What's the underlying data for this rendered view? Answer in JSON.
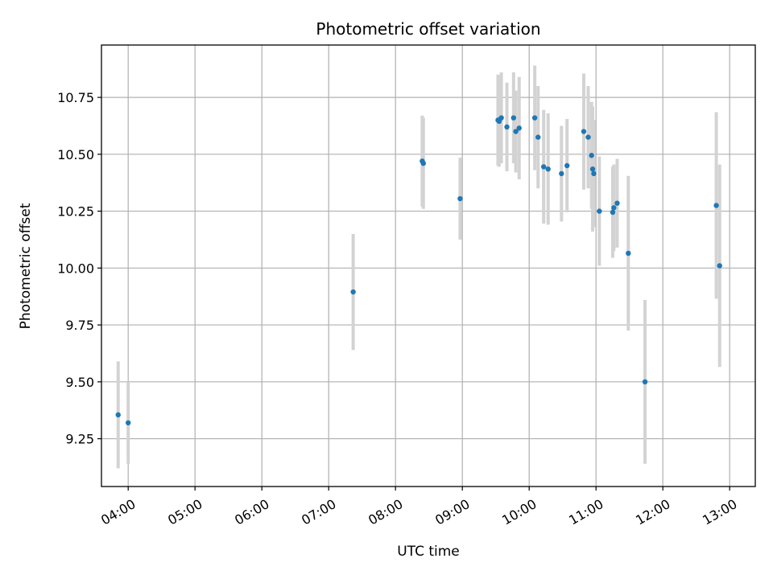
{
  "chart_data": {
    "type": "scatter",
    "title": "Photometric offset variation",
    "xlabel": "UTC time",
    "ylabel": "Photometric offset",
    "x_axis": {
      "kind": "time",
      "ticks": [
        "04:00",
        "05:00",
        "06:00",
        "07:00",
        "08:00",
        "09:00",
        "10:00",
        "11:00",
        "12:00",
        "13:00"
      ]
    },
    "y_axis": {
      "ticks": [
        9.25,
        9.5,
        9.75,
        10.0,
        10.25,
        10.5,
        10.75
      ],
      "tick_labels": [
        "9.25",
        "9.50",
        "9.75",
        "10.00",
        "10.25",
        "10.50",
        "10.75"
      ]
    },
    "xlim": [
      "03:36",
      "13:23"
    ],
    "ylim": [
      9.04,
      10.98
    ],
    "grid": true,
    "point_color": "#1f77b4",
    "errorbar_color": "#d3d3d3",
    "points": [
      {
        "x": "03:51",
        "y": 9.355,
        "err": 0.235
      },
      {
        "x": "04:00",
        "y": 9.32,
        "err": 0.18
      },
      {
        "x": "07:22",
        "y": 9.895,
        "err": 0.255
      },
      {
        "x": "08:24",
        "y": 10.47,
        "err": 0.2
      },
      {
        "x": "08:25",
        "y": 10.46,
        "err": 0.2
      },
      {
        "x": "08:58",
        "y": 10.305,
        "err": 0.18
      },
      {
        "x": "09:32",
        "y": 10.65,
        "err": 0.2
      },
      {
        "x": "09:33",
        "y": 10.645,
        "err": 0.2
      },
      {
        "x": "09:35",
        "y": 10.66,
        "err": 0.2
      },
      {
        "x": "09:40",
        "y": 10.62,
        "err": 0.195
      },
      {
        "x": "09:46",
        "y": 10.66,
        "err": 0.2
      },
      {
        "x": "09:48",
        "y": 10.6,
        "err": 0.18
      },
      {
        "x": "09:51",
        "y": 10.615,
        "err": 0.225
      },
      {
        "x": "10:05",
        "y": 10.66,
        "err": 0.23
      },
      {
        "x": "10:08",
        "y": 10.575,
        "err": 0.225
      },
      {
        "x": "10:13",
        "y": 10.445,
        "err": 0.25
      },
      {
        "x": "10:17",
        "y": 10.435,
        "err": 0.245
      },
      {
        "x": "10:29",
        "y": 10.415,
        "err": 0.21
      },
      {
        "x": "10:34",
        "y": 10.45,
        "err": 0.205
      },
      {
        "x": "10:49",
        "y": 10.6,
        "err": 0.255
      },
      {
        "x": "10:53",
        "y": 10.575,
        "err": 0.225
      },
      {
        "x": "10:56",
        "y": 10.495,
        "err": 0.235
      },
      {
        "x": "10:57",
        "y": 10.435,
        "err": 0.275
      },
      {
        "x": "10:58",
        "y": 10.415,
        "err": 0.235
      },
      {
        "x": "11:03",
        "y": 10.25,
        "err": 0.24
      },
      {
        "x": "11:15",
        "y": 10.245,
        "err": 0.2
      },
      {
        "x": "11:16",
        "y": 10.265,
        "err": 0.19
      },
      {
        "x": "11:19",
        "y": 10.285,
        "err": 0.195
      },
      {
        "x": "11:29",
        "y": 10.065,
        "err": 0.34
      },
      {
        "x": "11:44",
        "y": 9.5,
        "err": 0.36
      },
      {
        "x": "12:48",
        "y": 10.275,
        "err": 0.41
      },
      {
        "x": "12:51",
        "y": 10.01,
        "err": 0.445
      }
    ]
  }
}
